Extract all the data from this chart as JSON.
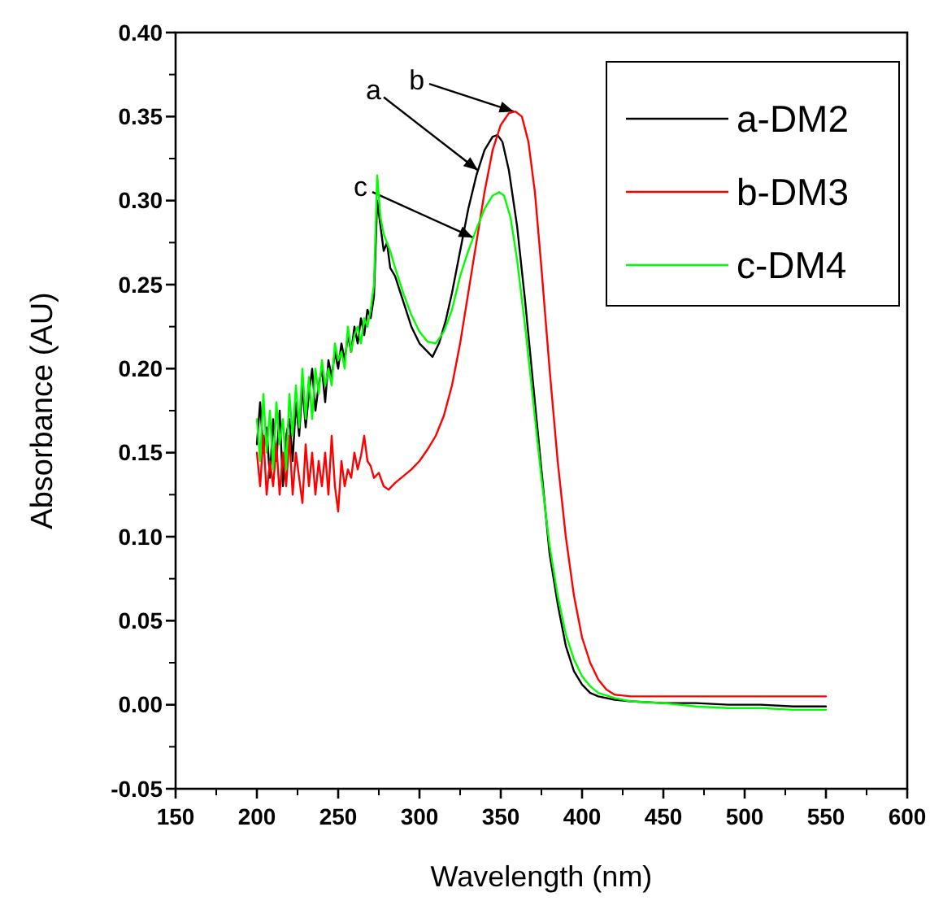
{
  "chart_data": {
    "type": "line",
    "xlabel": "Wavelength (nm)",
    "ylabel": "Absorbance (AU)",
    "xlim": [
      150,
      600
    ],
    "xticks": [
      150,
      200,
      250,
      300,
      350,
      400,
      450,
      500,
      550,
      600
    ],
    "ylim": [
      -0.05,
      0.4
    ],
    "yticks": [
      {
        "value": -0.05,
        "label": "-0.05"
      },
      {
        "value": 0,
        "label": "0.00"
      },
      {
        "value": 0.05,
        "label": "0.05"
      },
      {
        "value": 0.1,
        "label": "0.10"
      },
      {
        "value": 0.15,
        "label": "0.15"
      },
      {
        "value": 0.2,
        "label": "0.20"
      },
      {
        "value": 0.25,
        "label": "0.25"
      },
      {
        "value": 0.3,
        "label": "0.30"
      },
      {
        "value": 0.35,
        "label": "0.35"
      },
      {
        "value": 0.4,
        "label": "0.40"
      }
    ],
    "grid": false,
    "legend": "top right",
    "marker": "none",
    "line_style": "solid",
    "annotations": [
      {
        "text": "a",
        "x": 336,
        "y": 0.318
      },
      {
        "text": "b",
        "x": 358,
        "y": 0.353
      },
      {
        "text": "c",
        "x": 333,
        "y": 0.278
      }
    ],
    "series": [
      {
        "name": "a-DM2",
        "color": "#000000",
        "x": [
          200,
          202,
          204,
          206,
          208,
          210,
          212,
          214,
          216,
          218,
          220,
          222,
          224,
          226,
          228,
          230,
          232,
          234,
          236,
          238,
          240,
          242,
          244,
          246,
          248,
          250,
          252,
          254,
          256,
          258,
          260,
          262,
          264,
          266,
          268,
          270,
          272,
          274,
          276,
          278,
          280,
          282,
          285,
          290,
          295,
          300,
          305,
          308,
          312,
          316,
          320,
          325,
          330,
          335,
          340,
          345,
          348,
          351,
          355,
          360,
          365,
          370,
          375,
          380,
          385,
          390,
          395,
          400,
          405,
          410,
          420,
          430,
          450,
          470,
          490,
          510,
          530,
          550
        ],
        "values": [
          0.155,
          0.18,
          0.15,
          0.165,
          0.135,
          0.17,
          0.145,
          0.175,
          0.13,
          0.16,
          0.17,
          0.145,
          0.18,
          0.16,
          0.19,
          0.165,
          0.185,
          0.2,
          0.175,
          0.19,
          0.2,
          0.18,
          0.205,
          0.195,
          0.21,
          0.2,
          0.215,
          0.205,
          0.22,
          0.21,
          0.225,
          0.215,
          0.23,
          0.22,
          0.235,
          0.23,
          0.243,
          0.3,
          0.285,
          0.27,
          0.275,
          0.26,
          0.255,
          0.24,
          0.225,
          0.215,
          0.21,
          0.207,
          0.215,
          0.228,
          0.245,
          0.27,
          0.295,
          0.315,
          0.33,
          0.338,
          0.339,
          0.335,
          0.318,
          0.285,
          0.24,
          0.19,
          0.14,
          0.09,
          0.06,
          0.035,
          0.02,
          0.012,
          0.007,
          0.005,
          0.003,
          0.002,
          0.001,
          0.001,
          0,
          0,
          -0.001,
          -0.001
        ]
      },
      {
        "name": "b-DM3",
        "color": "#ff0000",
        "x": [
          200,
          202,
          204,
          206,
          208,
          210,
          212,
          214,
          216,
          218,
          220,
          222,
          224,
          226,
          228,
          230,
          232,
          234,
          236,
          238,
          240,
          242,
          244,
          246,
          248,
          250,
          252,
          254,
          256,
          258,
          260,
          262,
          264,
          266,
          268,
          270,
          272,
          275,
          278,
          281,
          285,
          290,
          295,
          300,
          305,
          310,
          315,
          320,
          325,
          330,
          335,
          340,
          345,
          350,
          355,
          359,
          363,
          367,
          371,
          375,
          380,
          385,
          390,
          395,
          400,
          405,
          410,
          415,
          420,
          430,
          450,
          500,
          550
        ],
        "values": [
          0.15,
          0.13,
          0.16,
          0.125,
          0.145,
          0.13,
          0.155,
          0.125,
          0.15,
          0.13,
          0.16,
          0.125,
          0.15,
          0.135,
          0.12,
          0.155,
          0.13,
          0.15,
          0.125,
          0.145,
          0.13,
          0.15,
          0.125,
          0.16,
          0.13,
          0.115,
          0.145,
          0.13,
          0.14,
          0.135,
          0.15,
          0.14,
          0.148,
          0.16,
          0.145,
          0.142,
          0.135,
          0.138,
          0.13,
          0.128,
          0.132,
          0.136,
          0.14,
          0.145,
          0.152,
          0.16,
          0.172,
          0.19,
          0.215,
          0.245,
          0.275,
          0.305,
          0.33,
          0.345,
          0.352,
          0.353,
          0.35,
          0.335,
          0.305,
          0.26,
          0.2,
          0.145,
          0.1,
          0.065,
          0.04,
          0.025,
          0.015,
          0.009,
          0.006,
          0.005,
          0.005,
          0.005,
          0.005
        ]
      },
      {
        "name": "c-DM4",
        "color": "#00ff00",
        "x": [
          200,
          202,
          204,
          206,
          208,
          210,
          212,
          214,
          216,
          218,
          220,
          222,
          224,
          226,
          228,
          230,
          232,
          234,
          236,
          238,
          240,
          242,
          244,
          246,
          248,
          250,
          252,
          254,
          256,
          258,
          260,
          262,
          264,
          266,
          268,
          270,
          272,
          274,
          276,
          278,
          280,
          282,
          285,
          290,
          295,
          300,
          305,
          310,
          315,
          320,
          325,
          330,
          335,
          340,
          345,
          349,
          352,
          356,
          360,
          365,
          370,
          375,
          380,
          385,
          390,
          395,
          400,
          405,
          410,
          420,
          430,
          450,
          470,
          490,
          510,
          530,
          550
        ],
        "values": [
          0.17,
          0.145,
          0.185,
          0.15,
          0.175,
          0.14,
          0.18,
          0.155,
          0.17,
          0.14,
          0.185,
          0.16,
          0.19,
          0.165,
          0.2,
          0.17,
          0.195,
          0.17,
          0.2,
          0.185,
          0.205,
          0.19,
          0.2,
          0.19,
          0.215,
          0.205,
          0.21,
          0.2,
          0.225,
          0.21,
          0.22,
          0.225,
          0.215,
          0.23,
          0.225,
          0.235,
          0.25,
          0.315,
          0.29,
          0.28,
          0.275,
          0.27,
          0.26,
          0.245,
          0.232,
          0.222,
          0.216,
          0.215,
          0.222,
          0.235,
          0.255,
          0.27,
          0.283,
          0.295,
          0.303,
          0.305,
          0.303,
          0.29,
          0.265,
          0.225,
          0.18,
          0.135,
          0.095,
          0.065,
          0.042,
          0.027,
          0.017,
          0.011,
          0.007,
          0.004,
          0.002,
          0.001,
          -0.001,
          -0.002,
          -0.002,
          -0.003,
          -0.003
        ]
      }
    ]
  }
}
